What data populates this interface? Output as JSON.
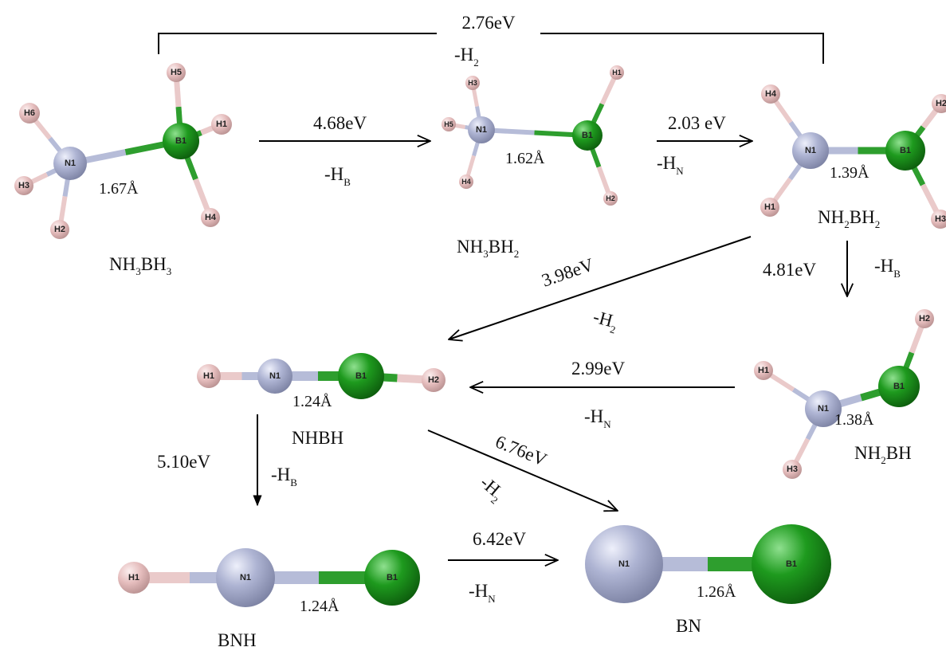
{
  "colors": {
    "N": "#a6acc9",
    "B": "#1f8f1f",
    "H": "#e7c1c1",
    "bond_N": "#b6bcd8",
    "bond_B": "#2e9e2e",
    "bond_H": "#eacaca"
  },
  "bracket_label": "2.76eV",
  "bracket_loss": {
    "main": "-H",
    "sub": "2"
  },
  "molecules": {
    "nh3bh3": {
      "name_parts": [
        {
          "t": "NH"
        },
        {
          "s": "3"
        },
        {
          "t": "BH"
        },
        {
          "s": "3"
        }
      ],
      "bond_length": "1.67Å",
      "atoms": {
        "N": "N1",
        "B": "B1",
        "H1": "H1",
        "H2": "H2",
        "H3": "H3",
        "H4": "H4",
        "H5": "H5",
        "H6": "H6"
      }
    },
    "nh3bh2": {
      "name_parts": [
        {
          "t": "NH"
        },
        {
          "s": "3"
        },
        {
          "t": "BH"
        },
        {
          "s": "2"
        }
      ],
      "bond_length": "1.62Å",
      "atoms": {
        "N": "N1",
        "B": "B1",
        "H1": "H1",
        "H2": "H2",
        "H3": "H3",
        "H4": "H4",
        "H5": "H5"
      }
    },
    "nh2bh2": {
      "name_parts": [
        {
          "t": "NH"
        },
        {
          "s": "2"
        },
        {
          "t": "BH"
        },
        {
          "s": "2"
        }
      ],
      "bond_length": "1.39Å",
      "atoms": {
        "N": "N1",
        "B": "B1",
        "H1": "H1",
        "H2": "H2",
        "H3": "H3",
        "H4": "H4"
      }
    },
    "nhbh": {
      "name_parts": [
        {
          "t": "NHBH"
        }
      ],
      "bond_length": "1.24Å",
      "atoms": {
        "N": "N1",
        "B": "B1",
        "H1": "H1",
        "H2": "H2"
      }
    },
    "nh2bh": {
      "name_parts": [
        {
          "t": "NH"
        },
        {
          "s": "2"
        },
        {
          "t": "BH"
        }
      ],
      "bond_length": "1.38Å",
      "atoms": {
        "N": "N1",
        "B": "B1",
        "H1": "H1",
        "H2": "H2",
        "H3": "H3"
      }
    },
    "bnh": {
      "name_parts": [
        {
          "t": "BNH"
        }
      ],
      "bond_length": "1.24Å",
      "atoms": {
        "N": "N1",
        "B": "B1",
        "H1": "H1"
      }
    },
    "bn": {
      "name_parts": [
        {
          "t": "BN"
        }
      ],
      "bond_length": "1.26Å",
      "atoms": {
        "N": "N1",
        "B": "B1"
      }
    }
  },
  "reactions": [
    {
      "id": "r1",
      "energy": "4.68eV",
      "loss": {
        "main": "-H",
        "sub": "B"
      }
    },
    {
      "id": "r2",
      "energy": "2.03 eV",
      "loss": {
        "main": "-H",
        "sub": "N"
      }
    },
    {
      "id": "r3",
      "energy": "4.81eV",
      "loss": {
        "main": "-H",
        "sub": "B"
      }
    },
    {
      "id": "r4",
      "energy": "3.98eV",
      "loss": {
        "main": "-H",
        "sub": "2"
      }
    },
    {
      "id": "r5",
      "energy": "2.99eV",
      "loss": {
        "main": "-H",
        "sub": "N"
      }
    },
    {
      "id": "r6",
      "energy": "5.10eV",
      "loss": {
        "main": "-H",
        "sub": "B"
      }
    },
    {
      "id": "r7",
      "energy": "6.76eV",
      "loss": {
        "main": "-H",
        "sub": "2"
      }
    },
    {
      "id": "r8",
      "energy": "6.42eV",
      "loss": {
        "main": "-H",
        "sub": "N"
      }
    }
  ]
}
